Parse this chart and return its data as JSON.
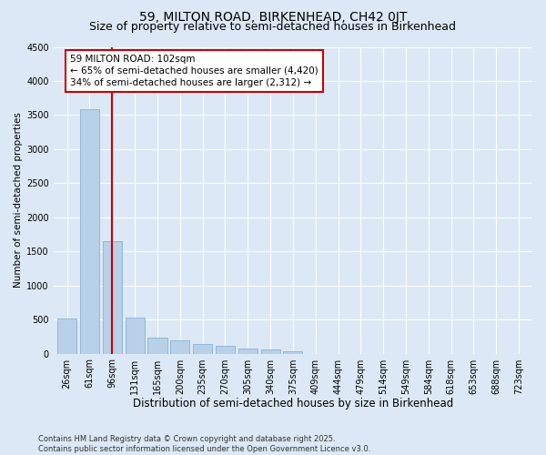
{
  "title": "59, MILTON ROAD, BIRKENHEAD, CH42 0JT",
  "subtitle": "Size of property relative to semi-detached houses in Birkenhead",
  "xlabel": "Distribution of semi-detached houses by size in Birkenhead",
  "ylabel": "Number of semi-detached properties",
  "categories": [
    "26sqm",
    "61sqm",
    "96sqm",
    "131sqm",
    "165sqm",
    "200sqm",
    "235sqm",
    "270sqm",
    "305sqm",
    "340sqm",
    "375sqm",
    "409sqm",
    "444sqm",
    "479sqm",
    "514sqm",
    "549sqm",
    "584sqm",
    "618sqm",
    "653sqm",
    "688sqm",
    "723sqm"
  ],
  "values": [
    510,
    3580,
    1650,
    530,
    240,
    195,
    145,
    110,
    75,
    55,
    40,
    0,
    0,
    0,
    0,
    0,
    0,
    0,
    0,
    0,
    0
  ],
  "bar_color": "#b8d0e8",
  "bar_edge_color": "#7aaad0",
  "vline_x": 2,
  "vline_color": "#cc0000",
  "annotation_text": "59 MILTON ROAD: 102sqm\n← 65% of semi-detached houses are smaller (4,420)\n34% of semi-detached houses are larger (2,312) →",
  "annotation_box_facecolor": "#ffffff",
  "annotation_box_edgecolor": "#cc0000",
  "annotation_fontsize": 7.5,
  "ylim": [
    0,
    4500
  ],
  "yticks": [
    0,
    500,
    1000,
    1500,
    2000,
    2500,
    3000,
    3500,
    4000,
    4500
  ],
  "bg_color": "#dce8f5",
  "grid_color": "#ffffff",
  "footer_text": "Contains HM Land Registry data © Crown copyright and database right 2025.\nContains public sector information licensed under the Open Government Licence v3.0.",
  "title_fontsize": 10,
  "subtitle_fontsize": 9,
  "xlabel_fontsize": 8.5,
  "ylabel_fontsize": 7.5,
  "tick_fontsize": 7,
  "footer_fontsize": 6
}
